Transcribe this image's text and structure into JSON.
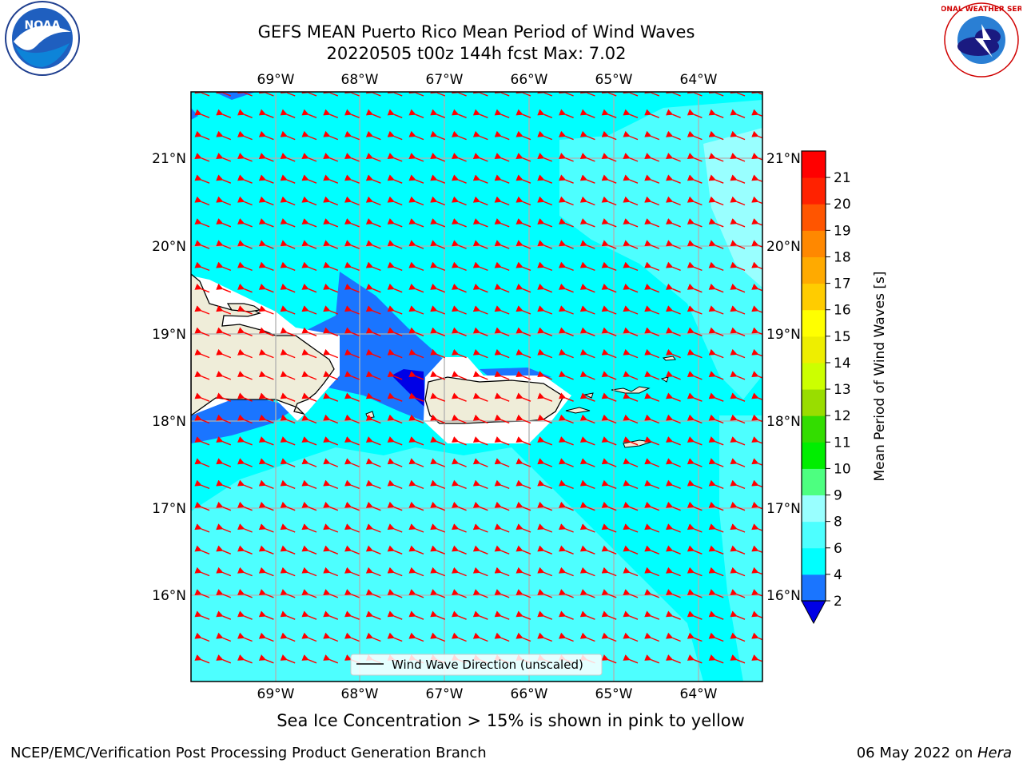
{
  "header": {
    "title_line1": "GEFS MEAN Puerto Rico Mean Period of Wind Waves",
    "title_line2": "20220505 t00z 144h fcst   Max: 7.02"
  },
  "map": {
    "lon_labels": [
      "69°W",
      "68°W",
      "67°W",
      "66°W",
      "65°W",
      "64°W"
    ],
    "lat_labels": [
      "21°N",
      "20°N",
      "19°N",
      "18°N",
      "17°N",
      "16°N"
    ],
    "legend_label": "Wind Wave Direction (unscaled)",
    "colors": {
      "ocean_4_6": "#00ffff",
      "ocean_6_8": "#4dffff",
      "ocean_8_9": "#99ffff",
      "ocean_2_4": "#1a75ff",
      "ocean_lt2": "#0000e6",
      "land": "#efedd9",
      "arrow": "#ff0000",
      "grid": "#b0b0b0"
    }
  },
  "colorbar": {
    "label": "Mean Period of Wind Waves [s]",
    "ticks": [
      "2",
      "4",
      "6",
      "8",
      "9",
      "10",
      "11",
      "12",
      "13",
      "14",
      "15",
      "16",
      "17",
      "18",
      "19",
      "20",
      "21"
    ],
    "colors": [
      "#1a75ff",
      "#00ffff",
      "#4dffff",
      "#99ffff",
      "#4dff80",
      "#00ee00",
      "#33dd00",
      "#99dd00",
      "#ccff00",
      "#eeee00",
      "#ffff00",
      "#ffcc00",
      "#ffaa00",
      "#ff8800",
      "#ff5500",
      "#ff2200",
      "#ff0000"
    ],
    "extend_color": "#0000e6"
  },
  "note": "Sea Ice Concentration > 15% is shown in pink to yellow",
  "footer": {
    "left": "NCEP/EMC/Verification Post Processing Product Generation Branch",
    "date": "06 May 2022 on ",
    "host": "Hera"
  },
  "logos": {
    "noaa_text": "NOAA",
    "nws_text": "NATIONAL WEATHER SERVICE"
  }
}
